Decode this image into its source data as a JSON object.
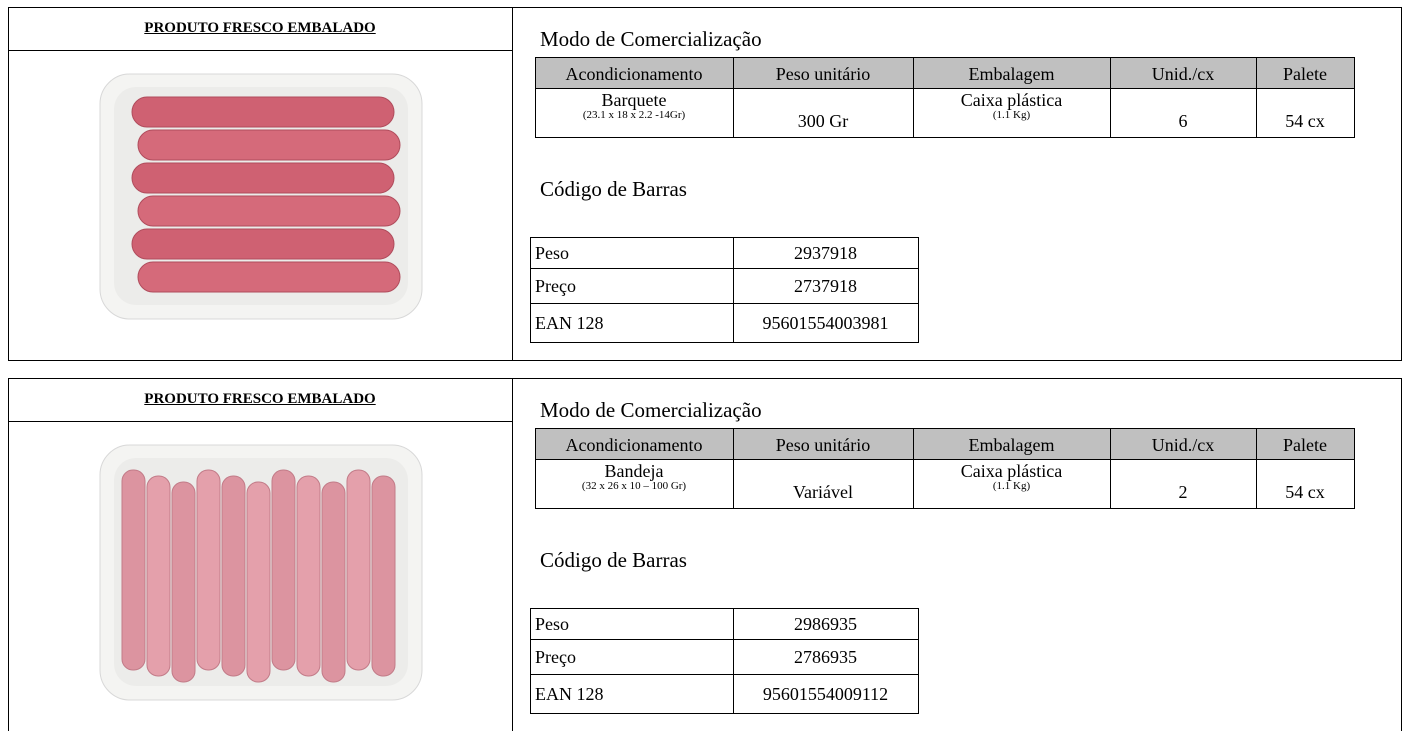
{
  "products": [
    {
      "header": "PRODUTO FRESCO EMBALADO",
      "section_title": "Modo de Comercialização",
      "columns": [
        "Acondicionamento",
        "Peso unitário",
        "Embalagem",
        "Unid./cx",
        "Palete"
      ],
      "row": [
        {
          "text": "Barquete",
          "detail": "(23.1 x 18 x 2.2 -14Gr)"
        },
        {
          "text": "300 Gr"
        },
        {
          "text": "Caixa plástica",
          "detail": "(1.1 Kg)"
        },
        {
          "text": "6"
        },
        {
          "text": "54 cx"
        }
      ],
      "barcode_title": "Código de Barras",
      "barcodes": [
        [
          "Peso",
          "2937918"
        ],
        [
          "Preço",
          "2737918"
        ],
        [
          "EAN 128",
          "95601554003981"
        ]
      ]
    },
    {
      "header": "PRODUTO FRESCO EMBALADO",
      "section_title": "Modo de Comercialização",
      "columns": [
        "Acondicionamento",
        "Peso unitário",
        "Embalagem",
        "Unid./cx",
        "Palete"
      ],
      "row": [
        {
          "text": "Bandeja",
          "detail": "(32 x 26 x 10 – 100 Gr)"
        },
        {
          "text": "Variável"
        },
        {
          "text": "Caixa plástica",
          "detail": "(1.1 Kg)"
        },
        {
          "text": "2"
        },
        {
          "text": "54 cx"
        }
      ],
      "barcode_title": "Código de Barras",
      "barcodes": [
        [
          "Peso",
          "2986935"
        ],
        [
          "Preço",
          "2786935"
        ],
        [
          "EAN 128",
          "95601554009112"
        ]
      ]
    }
  ]
}
